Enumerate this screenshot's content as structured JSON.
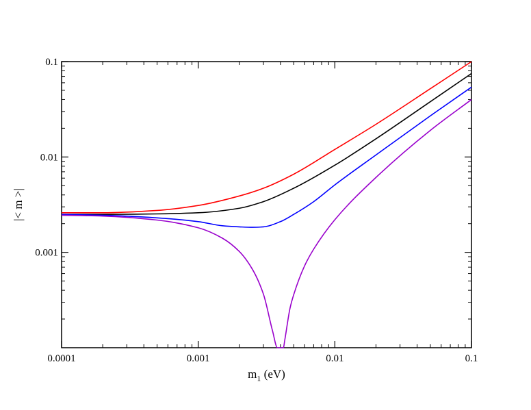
{
  "chart_data": {
    "type": "line",
    "title": "",
    "xlabel": "m",
    "xlabel_subscript": "1",
    "xlabel_unit": " (eV)",
    "ylabel": "|< m >|",
    "xscale": "log",
    "yscale": "log",
    "xlim": [
      0.0001,
      0.1
    ],
    "ylim": [
      0.0001,
      0.1
    ],
    "xticks": [
      0.0001,
      0.001,
      0.01,
      0.1
    ],
    "xtick_labels": [
      "0.0001",
      "0.001",
      "0.01",
      "0.1"
    ],
    "yticks": [
      0.001,
      0.01,
      0.1
    ],
    "ytick_labels": [
      "0.001",
      "0.01",
      "0.1"
    ],
    "grid": false,
    "legend": "none",
    "series": [
      {
        "color": "#ff0000",
        "x": [
          0.0001,
          0.0002,
          0.0005,
          0.001,
          0.002,
          0.003,
          0.005,
          0.01,
          0.02,
          0.05,
          0.1
        ],
        "y": [
          0.0026,
          0.0026,
          0.00275,
          0.0031,
          0.0039,
          0.0047,
          0.0066,
          0.012,
          0.022,
          0.052,
          0.1
        ]
      },
      {
        "color": "#000000",
        "x": [
          0.0001,
          0.0002,
          0.0005,
          0.001,
          0.002,
          0.003,
          0.005,
          0.01,
          0.02,
          0.05,
          0.1
        ],
        "y": [
          0.0025,
          0.0025,
          0.00253,
          0.0026,
          0.0029,
          0.0034,
          0.0047,
          0.0082,
          0.0155,
          0.038,
          0.075
        ]
      },
      {
        "color": "#0000ff",
        "x": [
          0.0001,
          0.0002,
          0.0005,
          0.001,
          0.0015,
          0.002,
          0.0025,
          0.003,
          0.004,
          0.005,
          0.007,
          0.01,
          0.02,
          0.05,
          0.1
        ],
        "y": [
          0.0025,
          0.00245,
          0.0023,
          0.0021,
          0.0019,
          0.00185,
          0.00183,
          0.00185,
          0.0021,
          0.0025,
          0.0034,
          0.0051,
          0.0105,
          0.027,
          0.054
        ]
      },
      {
        "color": "#9900cc",
        "x": [
          0.0001,
          0.0002,
          0.0005,
          0.001,
          0.0015,
          0.002,
          0.0025,
          0.003,
          0.0035,
          0.0038,
          0.0039,
          0.0042,
          0.0043,
          0.0047,
          0.005,
          0.006,
          0.007,
          0.01,
          0.02,
          0.05,
          0.1
        ],
        "y": [
          0.00245,
          0.0024,
          0.00218,
          0.00181,
          0.00141,
          0.00102,
          0.00066,
          0.000365,
          0.00015,
          0.0001,
          0.0001,
          0.0001,
          0.00012,
          0.00026,
          0.00036,
          0.00072,
          0.00108,
          0.0022,
          0.0061,
          0.019,
          0.04
        ]
      }
    ]
  }
}
